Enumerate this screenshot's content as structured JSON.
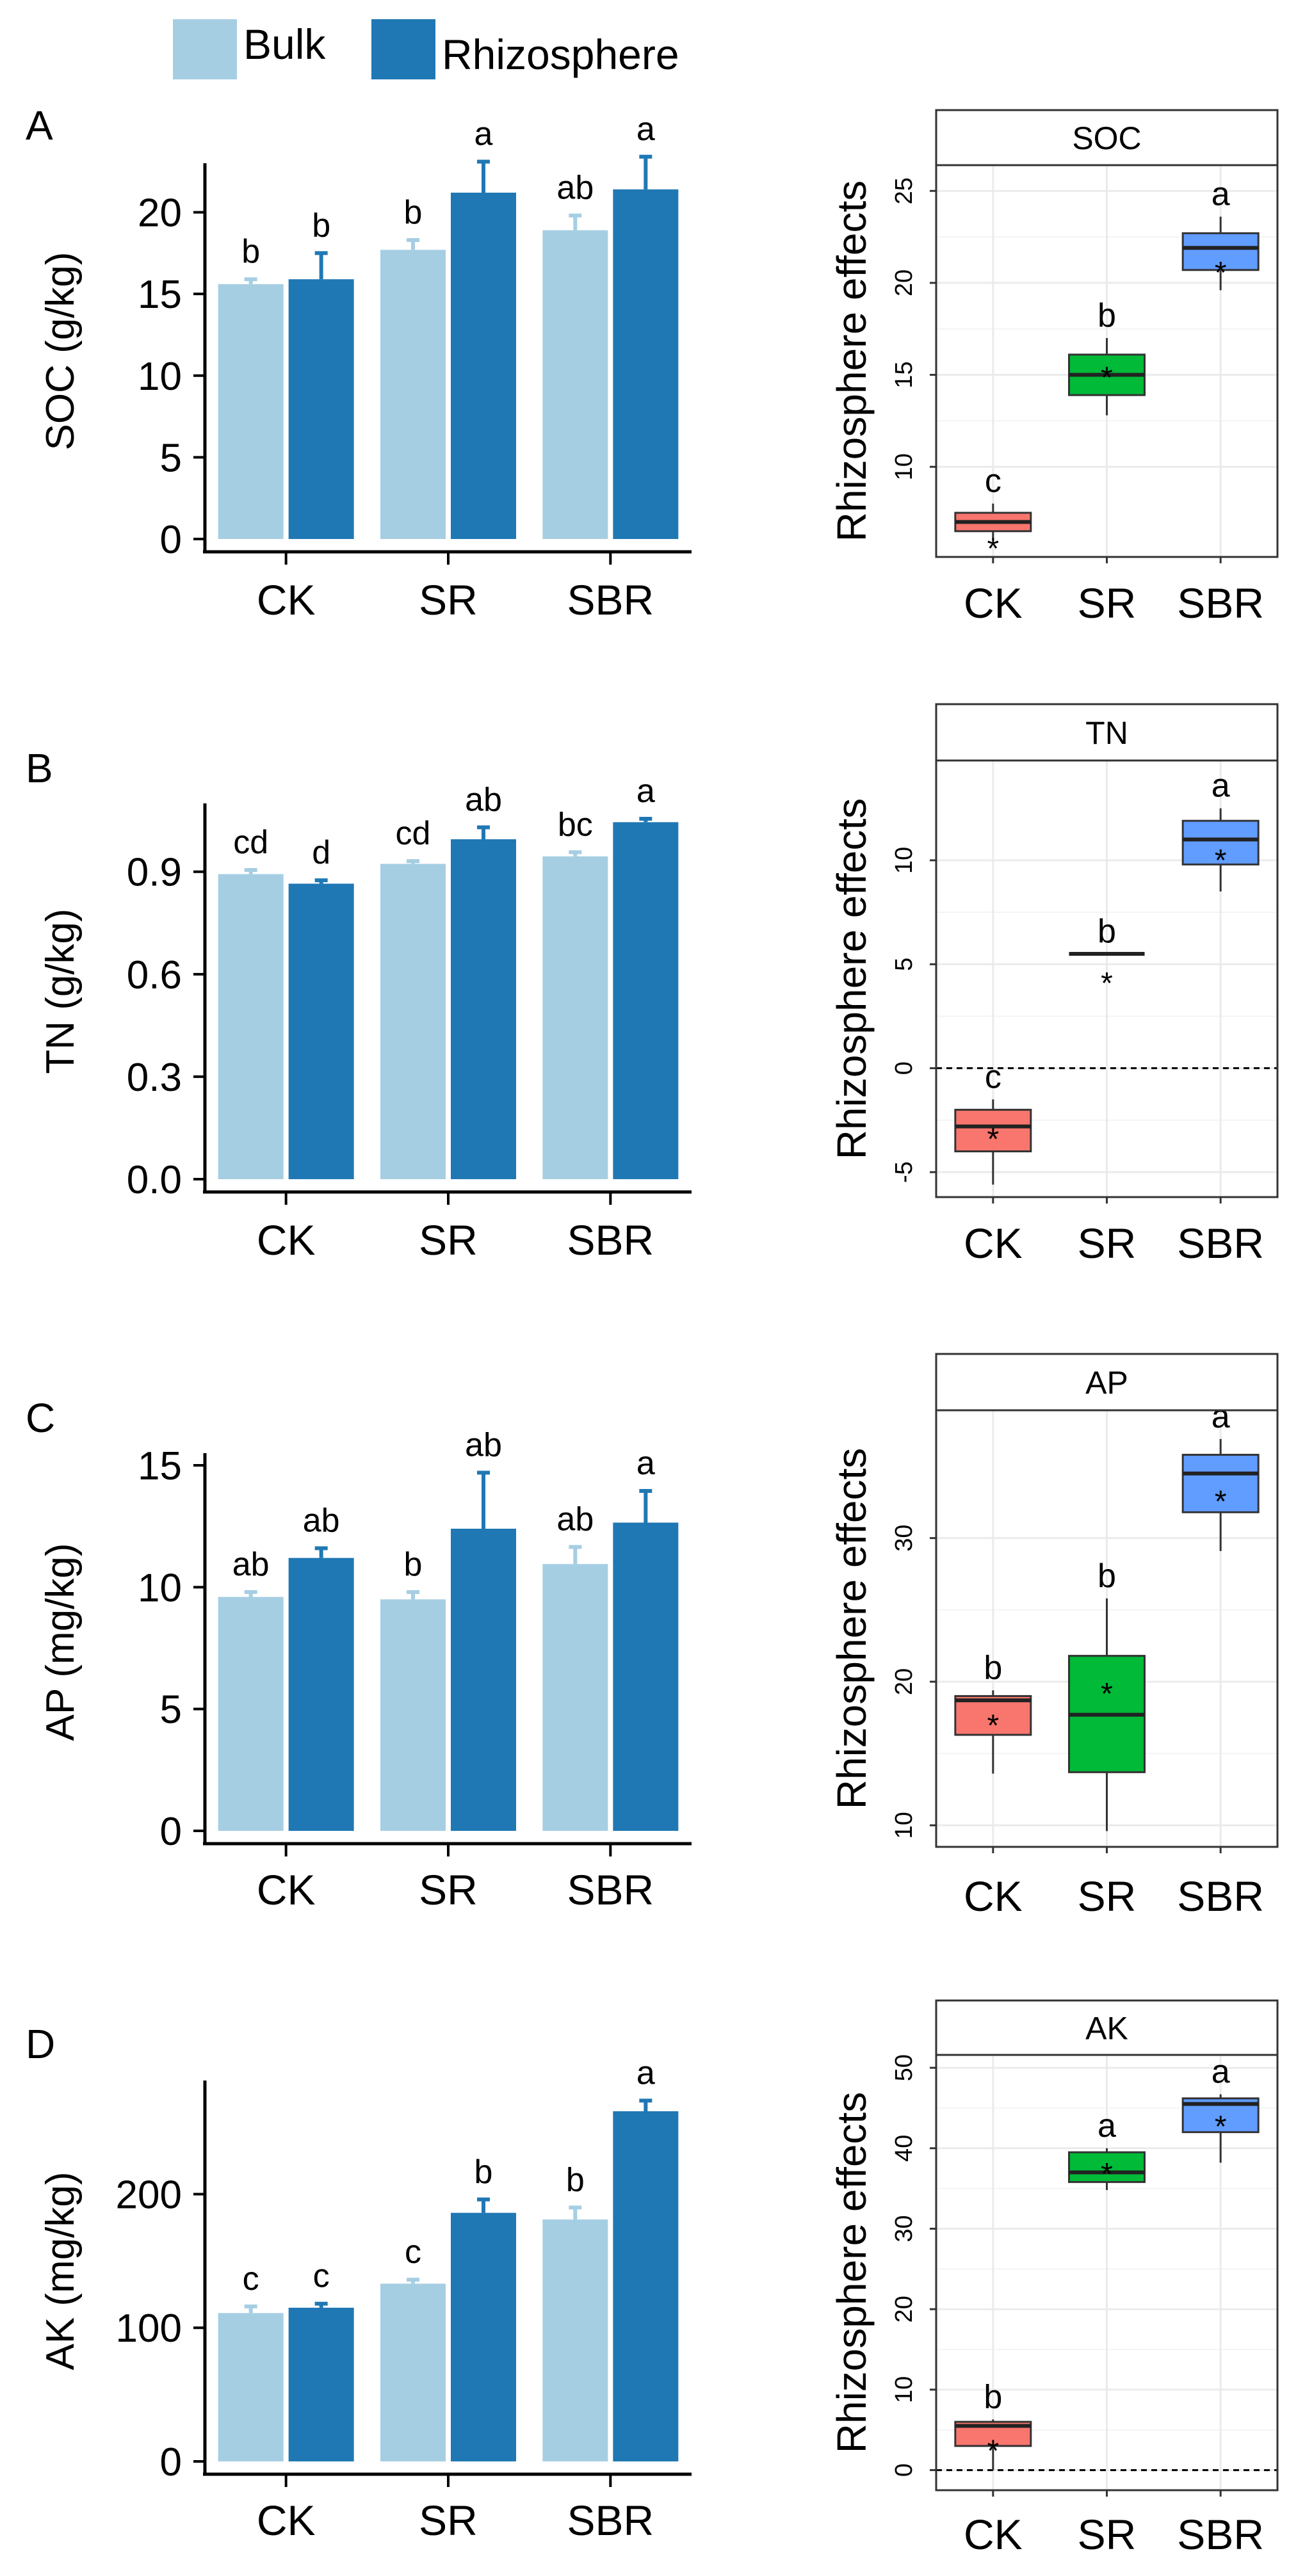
{
  "legend": {
    "items": [
      {
        "label": "Bulk",
        "color": "#a6cee3"
      },
      {
        "label": "Rhizosphere",
        "color": "#1f78b4"
      }
    ]
  },
  "colors": {
    "bulk": "#a6cee3",
    "rhizosphere": "#1f78b4",
    "box_CK": "#f8766d",
    "box_SR": "#00ba38",
    "box_SBR": "#619cff",
    "strip_bg": "#ffffff",
    "grid": "#ebebeb"
  },
  "chart_data": [
    {
      "type": "bar",
      "panel_label": "A",
      "ylabel": "SOC (g/kg)",
      "categories": [
        "CK",
        "SR",
        "SBR"
      ],
      "ylim": [
        0,
        23
      ],
      "yticks": [
        0,
        5,
        10,
        15,
        20
      ],
      "series": [
        {
          "name": "Bulk",
          "values": [
            15.6,
            17.7,
            18.9
          ],
          "errors": [
            0.3,
            0.6,
            0.9
          ],
          "letters": [
            "b",
            "b",
            "ab"
          ]
        },
        {
          "name": "Rhizosphere",
          "values": [
            15.9,
            21.2,
            21.4
          ],
          "errors": [
            1.6,
            1.9,
            2.0
          ],
          "letters": [
            "b",
            "a",
            "a"
          ]
        }
      ]
    },
    {
      "type": "box",
      "strip_title": "SOC",
      "ylabel": "Rhizosphere effects",
      "categories": [
        "CK",
        "SR",
        "SBR"
      ],
      "ylim": [
        5.1,
        26.4
      ],
      "yticks": [
        10,
        15,
        20,
        25
      ],
      "dashed_zero": false,
      "boxes": [
        {
          "q1": 6.5,
          "median": 7.0,
          "q3": 7.5,
          "whisker_low": 6.0,
          "whisker_high": 8.0,
          "mean": 5.9,
          "letter": "c"
        },
        {
          "q1": 13.9,
          "median": 15.0,
          "q3": 16.1,
          "whisker_low": 12.8,
          "whisker_high": 17.0,
          "mean": 15.2,
          "letter": "b"
        },
        {
          "q1": 20.7,
          "median": 21.9,
          "q3": 22.7,
          "whisker_low": 19.6,
          "whisker_high": 23.6,
          "mean": 20.9,
          "letter": "a"
        }
      ]
    },
    {
      "type": "bar",
      "panel_label": "B",
      "ylabel": "TN (g/kg)",
      "categories": [
        "CK",
        "SR",
        "SBR"
      ],
      "ylim": [
        0,
        1.1
      ],
      "yticks": [
        0.0,
        0.3,
        0.6,
        0.9
      ],
      "ytick_labels": [
        "0.0",
        "0.3",
        "0.6",
        "0.9"
      ],
      "series": [
        {
          "name": "Bulk",
          "values": [
            0.893,
            0.923,
            0.945
          ],
          "errors": [
            0.012,
            0.008,
            0.012
          ],
          "letters": [
            "cd",
            "cd",
            "bc"
          ]
        },
        {
          "name": "Rhizosphere",
          "values": [
            0.865,
            0.995,
            1.045
          ],
          "errors": [
            0.01,
            0.035,
            0.01
          ],
          "letters": [
            "d",
            "ab",
            "a"
          ]
        }
      ]
    },
    {
      "type": "box",
      "strip_title": "TN",
      "ylabel": "Rhizosphere effects",
      "categories": [
        "CK",
        "SR",
        "SBR"
      ],
      "ylim": [
        -6.2,
        14.8
      ],
      "yticks": [
        -5,
        0,
        5,
        10
      ],
      "dashed_zero": true,
      "boxes": [
        {
          "q1": -4.0,
          "median": -2.8,
          "q3": -2.0,
          "whisker_low": -5.6,
          "whisker_high": -1.5,
          "mean": -3.1,
          "letter": "c"
        },
        {
          "q1": 5.5,
          "median": 5.5,
          "q3": 5.5,
          "whisker_low": 5.5,
          "whisker_high": 5.5,
          "mean": 4.4,
          "letter": "b"
        },
        {
          "q1": 9.8,
          "median": 11.0,
          "q3": 11.9,
          "whisker_low": 8.5,
          "whisker_high": 12.5,
          "mean": 10.3,
          "letter": "a"
        }
      ]
    },
    {
      "type": "bar",
      "panel_label": "C",
      "ylabel": "AP (mg/kg)",
      "categories": [
        "CK",
        "SR",
        "SBR"
      ],
      "ylim": [
        0,
        15.5
      ],
      "yticks": [
        0,
        5,
        10,
        15
      ],
      "series": [
        {
          "name": "Bulk",
          "values": [
            9.6,
            9.5,
            10.95
          ],
          "errors": [
            0.2,
            0.3,
            0.7
          ],
          "letters": [
            "ab",
            "b",
            "ab"
          ]
        },
        {
          "name": "Rhizosphere",
          "values": [
            11.2,
            12.4,
            12.65
          ],
          "errors": [
            0.4,
            2.3,
            1.3
          ],
          "letters": [
            "ab",
            "ab",
            "a"
          ]
        }
      ]
    },
    {
      "type": "box",
      "strip_title": "AP",
      "ylabel": "Rhizosphere effects",
      "categories": [
        "CK",
        "SR",
        "SBR"
      ],
      "ylim": [
        8.5,
        38.9
      ],
      "yticks": [
        10,
        20,
        30
      ],
      "dashed_zero": false,
      "boxes": [
        {
          "q1": 16.3,
          "median": 18.7,
          "q3": 19.0,
          "whisker_low": 13.6,
          "whisker_high": 19.4,
          "mean": 17.4,
          "letter": "b"
        },
        {
          "q1": 13.7,
          "median": 17.7,
          "q3": 21.8,
          "whisker_low": 9.6,
          "whisker_high": 25.8,
          "mean": 19.6,
          "letter": "b"
        },
        {
          "q1": 31.8,
          "median": 34.5,
          "q3": 35.8,
          "whisker_low": 29.1,
          "whisker_high": 36.9,
          "mean": 33.0,
          "letter": "a"
        }
      ]
    },
    {
      "type": "bar",
      "panel_label": "D",
      "ylabel": "AK (mg/kg)",
      "categories": [
        "CK",
        "SR",
        "SBR"
      ],
      "ylim": [
        0,
        285
      ],
      "yticks": [
        0,
        100,
        200
      ],
      "series": [
        {
          "name": "Bulk",
          "values": [
            111,
            133,
            181
          ],
          "errors": [
            5,
            3,
            9
          ],
          "letters": [
            "c",
            "c",
            "b"
          ]
        },
        {
          "name": "Rhizosphere",
          "values": [
            115,
            186,
            262
          ],
          "errors": [
            3,
            10,
            8
          ],
          "letters": [
            "c",
            "b",
            "a"
          ]
        }
      ]
    },
    {
      "type": "box",
      "strip_title": "AK",
      "ylabel": "Rhizosphere effects",
      "categories": [
        "CK",
        "SR",
        "SBR"
      ],
      "ylim": [
        -2.5,
        51.6
      ],
      "yticks": [
        0,
        10,
        20,
        30,
        40,
        50
      ],
      "dashed_zero": true,
      "boxes": [
        {
          "q1": 3.0,
          "median": 5.5,
          "q3": 6.0,
          "whisker_low": 0.0,
          "whisker_high": 6.3,
          "mean": 3.2,
          "letter": "b"
        },
        {
          "q1": 35.8,
          "median": 37.0,
          "q3": 39.5,
          "whisker_low": 34.8,
          "whisker_high": 40.0,
          "mean": 37.6,
          "letter": "a"
        },
        {
          "q1": 42.0,
          "median": 45.5,
          "q3": 46.2,
          "whisker_low": 38.2,
          "whisker_high": 46.7,
          "mean": 43.5,
          "letter": "a"
        }
      ]
    }
  ]
}
